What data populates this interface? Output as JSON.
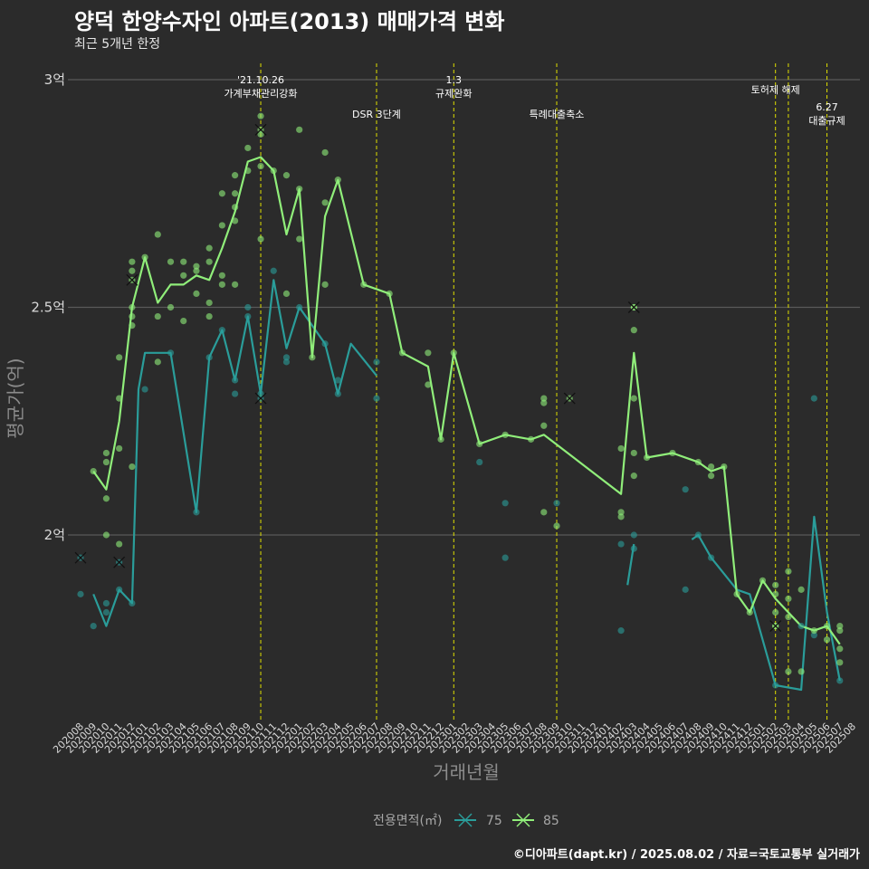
{
  "header": {
    "title": "양덕 한양수자인 아파트(2013) 매매가격 변화",
    "subtitle": "최근 5개년 한정"
  },
  "footer": {
    "credit": "©디아파트(dapt.kr) / 2025.08.02 / 자료=국토교통부 실거래가"
  },
  "colors": {
    "background": "#2b2b2b",
    "grid": "#5a5a5a",
    "s75": "#2a9d9a",
    "s85": "#90ee7a",
    "vline": "#e0e000"
  },
  "chart_data": {
    "type": "line",
    "xlabel": "거래년월",
    "ylabel": "평균가(억)",
    "yticks": [
      {
        "v": 2.0,
        "label": "2억"
      },
      {
        "v": 2.5,
        "label": "2.5억"
      },
      {
        "v": 3.0,
        "label": "3억"
      }
    ],
    "ylim": [
      1.6,
      3.02
    ],
    "grid": true,
    "legend": {
      "title": "전용면적(㎡)",
      "position": "bottom",
      "items": [
        "75",
        "85"
      ]
    },
    "months": [
      "202008",
      "202009",
      "202010",
      "202011",
      "202012",
      "202101",
      "202102",
      "202103",
      "202104",
      "202105",
      "202106",
      "202107",
      "202108",
      "202109",
      "202110",
      "202111",
      "202112",
      "202201",
      "202202",
      "202203",
      "202204",
      "202205",
      "202206",
      "202207",
      "202208",
      "202209",
      "202210",
      "202211",
      "202212",
      "202301",
      "202302",
      "202303",
      "202304",
      "202305",
      "202306",
      "202307",
      "202308",
      "202309",
      "202310",
      "202311",
      "202312",
      "202401",
      "202402",
      "202403",
      "202404",
      "202405",
      "202406",
      "202407",
      "202408",
      "202409",
      "202410",
      "202411",
      "202412",
      "202501",
      "202502",
      "202503",
      "202504",
      "202505",
      "202506",
      "202507",
      "202508"
    ],
    "series": [
      {
        "name": "75",
        "color": "#2a9d9a",
        "line": [
          [
            "202009.0",
            1.87
          ],
          [
            "202010.0",
            1.8
          ],
          [
            "202011.0",
            1.88
          ],
          [
            "202012.0",
            1.85
          ],
          [
            "202012.5",
            2.32
          ],
          [
            "202101.0",
            2.4
          ],
          [
            "202103.0",
            2.4
          ],
          [
            "202105.0",
            2.05
          ],
          [
            "202106.0",
            2.39
          ],
          [
            "202107.0",
            2.45
          ],
          [
            "202108.0",
            2.34
          ],
          [
            "202109.0",
            2.48
          ],
          [
            "202110.0",
            2.31
          ],
          [
            "202111.0",
            2.56
          ],
          [
            "202112.0",
            2.41
          ],
          [
            "202201.0",
            2.5
          ],
          [
            "202203.0",
            2.42
          ],
          [
            "202204.0",
            2.31
          ],
          [
            "202205.0",
            2.42
          ],
          [
            "202207.0",
            2.35
          ],
          [
            null,
            null
          ],
          [
            "202402.5",
            1.89
          ],
          [
            "202403.0",
            1.98
          ],
          [
            null,
            null
          ],
          [
            "202407.5",
            1.99
          ],
          [
            "202408.0",
            2.0
          ],
          [
            "202409.0",
            1.95
          ],
          [
            "202411.0",
            1.88
          ],
          [
            "202412.0",
            1.87
          ],
          [
            "202502.0",
            1.67
          ],
          [
            "202504.0",
            1.66
          ],
          [
            "202505.0",
            2.04
          ],
          [
            "202506.0",
            1.83
          ],
          [
            "202507.0",
            1.68
          ]
        ],
        "points": [
          [
            "202008.0",
            1.87
          ],
          [
            "202009.0",
            1.8
          ],
          [
            "202010.0",
            1.83
          ],
          [
            "202010.0",
            1.85
          ],
          [
            "202011.0",
            1.88
          ],
          [
            "202012.0",
            1.85
          ],
          [
            "202101.0",
            2.32
          ],
          [
            "202103.0",
            2.4
          ],
          [
            "202105.0",
            2.05
          ],
          [
            "202106.0",
            2.39
          ],
          [
            "202107.0",
            2.45
          ],
          [
            "202108.0",
            2.31
          ],
          [
            "202108.0",
            2.34
          ],
          [
            "202109.0",
            2.5
          ],
          [
            "202109.0",
            2.48
          ],
          [
            "202110.0",
            2.31
          ],
          [
            "202111.0",
            2.58
          ],
          [
            "202112.0",
            2.39
          ],
          [
            "202112.0",
            2.38
          ],
          [
            "202201.0",
            2.5
          ],
          [
            "202203.0",
            2.42
          ],
          [
            "202204.0",
            2.31
          ],
          [
            "202204.0",
            2.34
          ],
          [
            "202207.0",
            2.3
          ],
          [
            "202207.0",
            2.38
          ],
          [
            "202303.0",
            2.16
          ],
          [
            "202305.0",
            2.07
          ],
          [
            "202305.0",
            1.95
          ],
          [
            "202309.0",
            2.07
          ],
          [
            "202402.0",
            1.79
          ],
          [
            "202402.0",
            1.98
          ],
          [
            "202403.0",
            1.97
          ],
          [
            "202403.0",
            2.0
          ],
          [
            "202407.0",
            2.1
          ],
          [
            "202407.0",
            1.88
          ],
          [
            "202408.0",
            2.0
          ],
          [
            "202409.0",
            1.95
          ],
          [
            "202502.0",
            1.67
          ],
          [
            "202504.0",
            1.8
          ],
          [
            "202505.0",
            2.3
          ],
          [
            "202505.0",
            1.78
          ],
          [
            "202507.0",
            1.68
          ]
        ],
        "xmarks": [
          [
            "202008.0",
            1.95
          ],
          [
            "202011.0",
            1.94
          ],
          [
            "202110.0",
            2.3
          ]
        ]
      },
      {
        "name": "85",
        "color": "#90ee7a",
        "line": [
          [
            "202009.0",
            2.14
          ],
          [
            "202010.0",
            2.1
          ],
          [
            "202011.0",
            2.25
          ],
          [
            "202012.0",
            2.5
          ],
          [
            "202101.0",
            2.61
          ],
          [
            "202102.0",
            2.51
          ],
          [
            "202103.0",
            2.55
          ],
          [
            "202104.0",
            2.55
          ],
          [
            "202105.0",
            2.57
          ],
          [
            "202106.0",
            2.56
          ],
          [
            "202107.0",
            2.63
          ],
          [
            "202108.0",
            2.71
          ],
          [
            "202109.0",
            2.82
          ],
          [
            "202110.0",
            2.83
          ],
          [
            "202111.0",
            2.8
          ],
          [
            "202112.0",
            2.66
          ],
          [
            "202201.0",
            2.76
          ],
          [
            "202202.0",
            2.39
          ],
          [
            "202203.0",
            2.7
          ],
          [
            "202204.0",
            2.78
          ],
          [
            "202206.0",
            2.55
          ],
          [
            "202208.0",
            2.53
          ],
          [
            "202209.0",
            2.4
          ],
          [
            "202211.0",
            2.37
          ],
          [
            "202212.0",
            2.21
          ],
          [
            "202301.0",
            2.4
          ],
          [
            "202303.0",
            2.2
          ],
          [
            "202305.0",
            2.22
          ],
          [
            "202307.0",
            2.21
          ],
          [
            "202308.0",
            2.22
          ],
          [
            "202402.0",
            2.09
          ],
          [
            "202403.0",
            2.4
          ],
          [
            "202404.0",
            2.17
          ],
          [
            "202406.0",
            2.18
          ],
          [
            "202408.0",
            2.16
          ],
          [
            "202409.0",
            2.14
          ],
          [
            "202410.0",
            2.15
          ],
          [
            "202411.0",
            1.87
          ],
          [
            "202412.0",
            1.83
          ],
          [
            "202501.0",
            1.9
          ],
          [
            "202502.0",
            1.86
          ],
          [
            "202503.0",
            1.83
          ],
          [
            "202504.0",
            1.8
          ],
          [
            "202505.0",
            1.79
          ],
          [
            "202506.0",
            1.8
          ],
          [
            "202507.0",
            1.76
          ]
        ],
        "points": [
          [
            "202009.0",
            2.14
          ],
          [
            "202010.0",
            2.08
          ],
          [
            "202010.0",
            2.16
          ],
          [
            "202010.0",
            2.18
          ],
          [
            "202010.0",
            2.0
          ],
          [
            "202011.0",
            2.19
          ],
          [
            "202011.0",
            2.3
          ],
          [
            "202011.0",
            2.39
          ],
          [
            "202011.0",
            1.98
          ],
          [
            "202012.0",
            2.15
          ],
          [
            "202012.0",
            2.46
          ],
          [
            "202012.0",
            2.48
          ],
          [
            "202012.0",
            2.5
          ],
          [
            "202012.0",
            2.58
          ],
          [
            "202012.0",
            2.6
          ],
          [
            "202101.0",
            2.61
          ],
          [
            "202102.0",
            2.38
          ],
          [
            "202102.0",
            2.48
          ],
          [
            "202102.0",
            2.66
          ],
          [
            "202103.0",
            2.5
          ],
          [
            "202103.0",
            2.6
          ],
          [
            "202104.0",
            2.47
          ],
          [
            "202104.0",
            2.57
          ],
          [
            "202104.0",
            2.6
          ],
          [
            "202105.0",
            2.53
          ],
          [
            "202105.0",
            2.58
          ],
          [
            "202105.0",
            2.59
          ],
          [
            "202106.0",
            2.48
          ],
          [
            "202106.0",
            2.51
          ],
          [
            "202106.0",
            2.6
          ],
          [
            "202106.0",
            2.63
          ],
          [
            "202107.0",
            2.55
          ],
          [
            "202107.0",
            2.57
          ],
          [
            "202107.0",
            2.68
          ],
          [
            "202107.0",
            2.75
          ],
          [
            "202108.0",
            2.55
          ],
          [
            "202108.0",
            2.69
          ],
          [
            "202108.0",
            2.72
          ],
          [
            "202108.0",
            2.75
          ],
          [
            "202108.0",
            2.79
          ],
          [
            "202109.0",
            2.8
          ],
          [
            "202109.0",
            2.85
          ],
          [
            "202110.0",
            2.65
          ],
          [
            "202110.0",
            2.81
          ],
          [
            "202110.0",
            2.88
          ],
          [
            "202110.0",
            2.92
          ],
          [
            "202111.0",
            2.8
          ],
          [
            "202112.0",
            2.53
          ],
          [
            "202112.0",
            2.79
          ],
          [
            "202201.0",
            2.65
          ],
          [
            "202201.0",
            2.89
          ],
          [
            "202201.0",
            2.76
          ],
          [
            "202202.0",
            2.39
          ],
          [
            "202203.0",
            2.55
          ],
          [
            "202203.0",
            2.73
          ],
          [
            "202203.0",
            2.84
          ],
          [
            "202204.0",
            2.78
          ],
          [
            "202206.0",
            2.55
          ],
          [
            "202208.0",
            2.53
          ],
          [
            "202209.0",
            2.4
          ],
          [
            "202211.0",
            2.33
          ],
          [
            "202211.0",
            2.4
          ],
          [
            "202212.0",
            2.21
          ],
          [
            "202301.0",
            2.4
          ],
          [
            "202303.0",
            2.2
          ],
          [
            "202305.0",
            2.22
          ],
          [
            "202307.0",
            2.21
          ],
          [
            "202308.0",
            2.05
          ],
          [
            "202308.0",
            2.24
          ],
          [
            "202308.0",
            2.29
          ],
          [
            "202308.0",
            2.3
          ],
          [
            "202309.0",
            2.02
          ],
          [
            "202402.0",
            2.04
          ],
          [
            "202402.0",
            2.05
          ],
          [
            "202402.0",
            2.19
          ],
          [
            "202403.0",
            2.13
          ],
          [
            "202403.0",
            2.18
          ],
          [
            "202403.0",
            2.45
          ],
          [
            "202403.0",
            2.3
          ],
          [
            "202403.0",
            2.5
          ],
          [
            "202404.0",
            2.17
          ],
          [
            "202406.0",
            2.18
          ],
          [
            "202408.0",
            2.16
          ],
          [
            "202409.0",
            2.13
          ],
          [
            "202409.0",
            2.15
          ],
          [
            "202410.0",
            2.15
          ],
          [
            "202411.0",
            1.87
          ],
          [
            "202412.0",
            1.83
          ],
          [
            "202501.0",
            1.9
          ],
          [
            "202502.0",
            1.8
          ],
          [
            "202502.0",
            1.83
          ],
          [
            "202502.0",
            1.87
          ],
          [
            "202502.0",
            1.89
          ],
          [
            "202503.0",
            1.7
          ],
          [
            "202503.0",
            1.82
          ],
          [
            "202503.0",
            1.86
          ],
          [
            "202503.0",
            1.92
          ],
          [
            "202504.0",
            1.7
          ],
          [
            "202504.0",
            1.88
          ],
          [
            "202505.0",
            1.79
          ],
          [
            "202506.0",
            1.77
          ],
          [
            "202506.0",
            1.8
          ],
          [
            "202507.0",
            1.72
          ],
          [
            "202507.0",
            1.75
          ],
          [
            "202507.0",
            1.79
          ],
          [
            "202507.0",
            1.8
          ]
        ],
        "xmarks": [
          [
            "202012.0",
            2.56
          ],
          [
            "202110.0",
            2.89
          ],
          [
            "202310.0",
            2.3
          ],
          [
            "202403.0",
            2.5
          ],
          [
            "202502.0",
            1.8
          ]
        ]
      }
    ],
    "annotations": [
      {
        "month": "202110.0",
        "lines": [
          "'21.10.26",
          "가계부채관리강화"
        ],
        "row": 0
      },
      {
        "month": "202207.0",
        "lines": [
          "DSR 3단계"
        ],
        "row": 2
      },
      {
        "month": "202301.0",
        "lines": [
          "1.3",
          "규제완화"
        ],
        "row": 0
      },
      {
        "month": "202309.0",
        "lines": [
          "특례대출축소"
        ],
        "row": 2
      },
      {
        "month": "202502.0",
        "lines": [
          "토허제 해제"
        ],
        "row": 1
      },
      {
        "month": "202503.0",
        "lines": [],
        "row": 1
      },
      {
        "month": "202506.0",
        "lines": [
          "6.27",
          "대출규제"
        ],
        "row": 3
      }
    ]
  }
}
